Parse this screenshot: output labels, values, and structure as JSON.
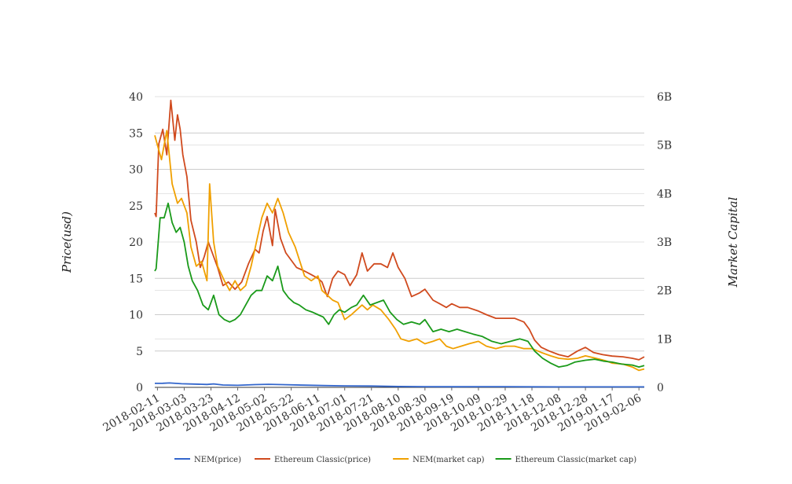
{
  "chart_data": {
    "type": "line",
    "title": "",
    "ylabel": "Price(usd)",
    "y2label": "Market Capital",
    "ylim": [
      0,
      40
    ],
    "y2lim": [
      0,
      6000000000
    ],
    "y_ticks": [
      "0",
      "5",
      "10",
      "15",
      "20",
      "25",
      "30",
      "35",
      "40"
    ],
    "y2_ticks": [
      "0",
      "1B",
      "2B",
      "3B",
      "4B",
      "5B",
      "6B"
    ],
    "x_range": [
      "2018-02-09",
      "2019-02-10"
    ],
    "x_ticks": [
      "2018-02-11",
      "2018-03-03",
      "2018-03-23",
      "2018-04-12",
      "2018-05-02",
      "2018-05-22",
      "2018-06-11",
      "2018-07-01",
      "2018-07-21",
      "2018-08-10",
      "2018-08-30",
      "2018-09-19",
      "2018-10-09",
      "2018-10-29",
      "2018-11-18",
      "2018-12-08",
      "2018-12-28",
      "2019-01-17",
      "2019-02-06"
    ],
    "grid": true,
    "legend_position": "bottom",
    "series": [
      {
        "name": "NEM(price)",
        "axis": "left",
        "color": "#3366cc",
        "x": [
          "2018-02-09",
          "2018-02-15",
          "2018-02-20",
          "2018-03-01",
          "2018-03-10",
          "2018-03-20",
          "2018-03-25",
          "2018-04-01",
          "2018-04-12",
          "2018-04-25",
          "2018-05-05",
          "2018-05-15",
          "2018-06-01",
          "2018-06-15",
          "2018-07-01",
          "2018-07-21",
          "2018-08-10",
          "2018-08-30",
          "2018-09-19",
          "2018-10-09",
          "2018-10-29",
          "2018-11-18",
          "2018-12-08",
          "2018-12-28",
          "2019-01-17",
          "2019-02-10"
        ],
        "values": [
          0.55,
          0.56,
          0.6,
          0.5,
          0.45,
          0.4,
          0.48,
          0.32,
          0.28,
          0.38,
          0.42,
          0.38,
          0.3,
          0.25,
          0.2,
          0.18,
          0.12,
          0.1,
          0.09,
          0.1,
          0.1,
          0.08,
          0.06,
          0.07,
          0.06,
          0.06
        ]
      },
      {
        "name": "Ethereum Classic(price)",
        "axis": "left",
        "color": "#d04a1e",
        "x": [
          "2018-02-09",
          "2018-02-10",
          "2018-02-12",
          "2018-02-15",
          "2018-02-18",
          "2018-02-21",
          "2018-02-24",
          "2018-02-26",
          "2018-02-28",
          "2018-03-02",
          "2018-03-05",
          "2018-03-08",
          "2018-03-12",
          "2018-03-15",
          "2018-03-18",
          "2018-03-21",
          "2018-03-25",
          "2018-03-28",
          "2018-04-01",
          "2018-04-05",
          "2018-04-10",
          "2018-04-15",
          "2018-04-20",
          "2018-04-25",
          "2018-04-28",
          "2018-05-01",
          "2018-05-04",
          "2018-05-08",
          "2018-05-10",
          "2018-05-14",
          "2018-05-18",
          "2018-05-22",
          "2018-05-26",
          "2018-06-01",
          "2018-06-06",
          "2018-06-11",
          "2018-06-14",
          "2018-06-18",
          "2018-06-22",
          "2018-06-26",
          "2018-07-01",
          "2018-07-05",
          "2018-07-10",
          "2018-07-14",
          "2018-07-18",
          "2018-07-23",
          "2018-07-28",
          "2018-08-02",
          "2018-08-06",
          "2018-08-10",
          "2018-08-15",
          "2018-08-20",
          "2018-08-26",
          "2018-08-30",
          "2018-09-05",
          "2018-09-10",
          "2018-09-15",
          "2018-09-19",
          "2018-09-25",
          "2018-10-01",
          "2018-10-09",
          "2018-10-15",
          "2018-10-22",
          "2018-10-29",
          "2018-11-05",
          "2018-11-12",
          "2018-11-16",
          "2018-11-20",
          "2018-11-25",
          "2018-12-01",
          "2018-12-08",
          "2018-12-15",
          "2018-12-22",
          "2018-12-28",
          "2019-01-03",
          "2019-01-10",
          "2019-01-17",
          "2019-01-25",
          "2019-02-01",
          "2019-02-06",
          "2019-02-10"
        ],
        "values": [
          24.0,
          23.5,
          33.5,
          35.5,
          32.0,
          39.5,
          34.0,
          37.5,
          35.5,
          32.0,
          29.0,
          23.0,
          20.0,
          16.5,
          18.0,
          20.0,
          18.0,
          16.5,
          14.0,
          14.5,
          13.5,
          14.5,
          17.0,
          19.0,
          18.5,
          21.5,
          23.5,
          19.5,
          24.5,
          20.5,
          18.5,
          17.5,
          16.5,
          16.0,
          15.5,
          15.0,
          14.5,
          12.5,
          15.0,
          16.0,
          15.5,
          14.0,
          15.5,
          18.5,
          16.0,
          17.0,
          17.0,
          16.5,
          18.5,
          16.5,
          15.0,
          12.5,
          13.0,
          13.5,
          12.0,
          11.5,
          11.0,
          11.5,
          11.0,
          11.0,
          10.5,
          10.0,
          9.5,
          9.5,
          9.5,
          9.0,
          8.0,
          6.5,
          5.5,
          5.0,
          4.5,
          4.2,
          5.0,
          5.5,
          4.8,
          4.5,
          4.3,
          4.2,
          4.0,
          3.8,
          4.2
        ]
      },
      {
        "name": "NEM(market cap)",
        "axis": "right",
        "color": "#f0a000",
        "x": [
          "2018-02-09",
          "2018-02-11",
          "2018-02-14",
          "2018-02-18",
          "2018-02-22",
          "2018-02-26",
          "2018-03-01",
          "2018-03-05",
          "2018-03-08",
          "2018-03-12",
          "2018-03-16",
          "2018-03-20",
          "2018-03-22",
          "2018-03-25",
          "2018-03-28",
          "2018-04-02",
          "2018-04-06",
          "2018-04-10",
          "2018-04-14",
          "2018-04-18",
          "2018-04-22",
          "2018-04-26",
          "2018-04-30",
          "2018-05-04",
          "2018-05-08",
          "2018-05-12",
          "2018-05-16",
          "2018-05-20",
          "2018-05-25",
          "2018-06-01",
          "2018-06-06",
          "2018-06-11",
          "2018-06-14",
          "2018-06-18",
          "2018-06-22",
          "2018-06-26",
          "2018-07-01",
          "2018-07-06",
          "2018-07-10",
          "2018-07-14",
          "2018-07-18",
          "2018-07-22",
          "2018-07-28",
          "2018-08-03",
          "2018-08-08",
          "2018-08-12",
          "2018-08-18",
          "2018-08-24",
          "2018-08-30",
          "2018-09-05",
          "2018-09-10",
          "2018-09-15",
          "2018-09-20",
          "2018-09-26",
          "2018-10-02",
          "2018-10-09",
          "2018-10-15",
          "2018-10-22",
          "2018-10-29",
          "2018-11-05",
          "2018-11-12",
          "2018-11-18",
          "2018-11-25",
          "2018-12-02",
          "2018-12-08",
          "2018-12-15",
          "2018-12-22",
          "2018-12-28",
          "2019-01-05",
          "2019-01-12",
          "2019-01-17",
          "2019-01-25",
          "2019-02-01",
          "2019-02-06",
          "2019-02-10"
        ],
        "values": [
          5200000000.0,
          5000000000.0,
          4700000000.0,
          5300000000.0,
          4200000000.0,
          3800000000.0,
          3900000000.0,
          3600000000.0,
          2900000000.0,
          2500000000.0,
          2600000000.0,
          2200000000.0,
          4200000000.0,
          3000000000.0,
          2500000000.0,
          2200000000.0,
          2000000000.0,
          2200000000.0,
          2000000000.0,
          2100000000.0,
          2500000000.0,
          3000000000.0,
          3500000000.0,
          3800000000.0,
          3600000000.0,
          3900000000.0,
          3600000000.0,
          3200000000.0,
          2900000000.0,
          2300000000.0,
          2200000000.0,
          2300000000.0,
          2000000000.0,
          1900000000.0,
          1800000000.0,
          1750000000.0,
          1400000000.0,
          1500000000.0,
          1600000000.0,
          1700000000.0,
          1600000000.0,
          1700000000.0,
          1600000000.0,
          1400000000.0,
          1200000000.0,
          1000000000.0,
          950000000.0,
          1000000000.0,
          900000000.0,
          950000000.0,
          1000000000.0,
          850000000.0,
          800000000.0,
          850000000.0,
          900000000.0,
          950000000.0,
          850000000.0,
          800000000.0,
          850000000.0,
          850000000.0,
          800000000.0,
          800000000.0,
          720000000.0,
          650000000.0,
          600000000.0,
          580000000.0,
          600000000.0,
          650000000.0,
          600000000.0,
          550000000.0,
          500000000.0,
          480000000.0,
          420000000.0,
          350000000.0,
          380000000.0
        ]
      },
      {
        "name": "Ethereum Classic(market cap)",
        "axis": "right",
        "color": "#1a9a1a",
        "x": [
          "2018-02-09",
          "2018-02-10",
          "2018-02-13",
          "2018-02-16",
          "2018-02-19",
          "2018-02-22",
          "2018-02-25",
          "2018-02-28",
          "2018-03-03",
          "2018-03-06",
          "2018-03-09",
          "2018-03-13",
          "2018-03-17",
          "2018-03-21",
          "2018-03-25",
          "2018-03-29",
          "2018-04-02",
          "2018-04-06",
          "2018-04-10",
          "2018-04-14",
          "2018-04-18",
          "2018-04-22",
          "2018-04-26",
          "2018-04-30",
          "2018-05-04",
          "2018-05-08",
          "2018-05-12",
          "2018-05-16",
          "2018-05-20",
          "2018-05-24",
          "2018-05-28",
          "2018-06-02",
          "2018-06-07",
          "2018-06-11",
          "2018-06-15",
          "2018-06-19",
          "2018-06-23",
          "2018-06-27",
          "2018-07-01",
          "2018-07-06",
          "2018-07-10",
          "2018-07-15",
          "2018-07-20",
          "2018-07-25",
          "2018-07-30",
          "2018-08-04",
          "2018-08-09",
          "2018-08-14",
          "2018-08-20",
          "2018-08-26",
          "2018-08-30",
          "2018-09-05",
          "2018-09-11",
          "2018-09-17",
          "2018-09-23",
          "2018-09-29",
          "2018-10-05",
          "2018-10-12",
          "2018-10-19",
          "2018-10-26",
          "2018-11-02",
          "2018-11-09",
          "2018-11-15",
          "2018-11-20",
          "2018-11-26",
          "2018-12-02",
          "2018-12-08",
          "2018-12-14",
          "2018-12-20",
          "2018-12-28",
          "2019-01-04",
          "2019-01-11",
          "2019-01-17",
          "2019-01-24",
          "2019-02-01",
          "2019-02-06",
          "2019-02-10"
        ],
        "values": [
          2400000000.0,
          2450000000.0,
          3500000000.0,
          3500000000.0,
          3800000000.0,
          3400000000.0,
          3200000000.0,
          3300000000.0,
          3000000000.0,
          2500000000.0,
          2200000000.0,
          2000000000.0,
          1700000000.0,
          1600000000.0,
          1900000000.0,
          1500000000.0,
          1400000000.0,
          1350000000.0,
          1400000000.0,
          1500000000.0,
          1700000000.0,
          1900000000.0,
          2000000000.0,
          2000000000.0,
          2300000000.0,
          2200000000.0,
          2500000000.0,
          2000000000.0,
          1850000000.0,
          1750000000.0,
          1700000000.0,
          1600000000.0,
          1550000000.0,
          1500000000.0,
          1450000000.0,
          1300000000.0,
          1500000000.0,
          1600000000.0,
          1550000000.0,
          1650000000.0,
          1700000000.0,
          1900000000.0,
          1700000000.0,
          1750000000.0,
          1800000000.0,
          1550000000.0,
          1400000000.0,
          1300000000.0,
          1350000000.0,
          1300000000.0,
          1400000000.0,
          1150000000.0,
          1200000000.0,
          1150000000.0,
          1200000000.0,
          1150000000.0,
          1100000000.0,
          1050000000.0,
          950000000.0,
          900000000.0,
          950000000.0,
          1000000000.0,
          950000000.0,
          750000000.0,
          600000000.0,
          500000000.0,
          420000000.0,
          450000000.0,
          520000000.0,
          560000000.0,
          580000000.0,
          540000000.0,
          520000000.0,
          480000000.0,
          460000000.0,
          420000000.0,
          450000000.0
        ]
      }
    ]
  }
}
